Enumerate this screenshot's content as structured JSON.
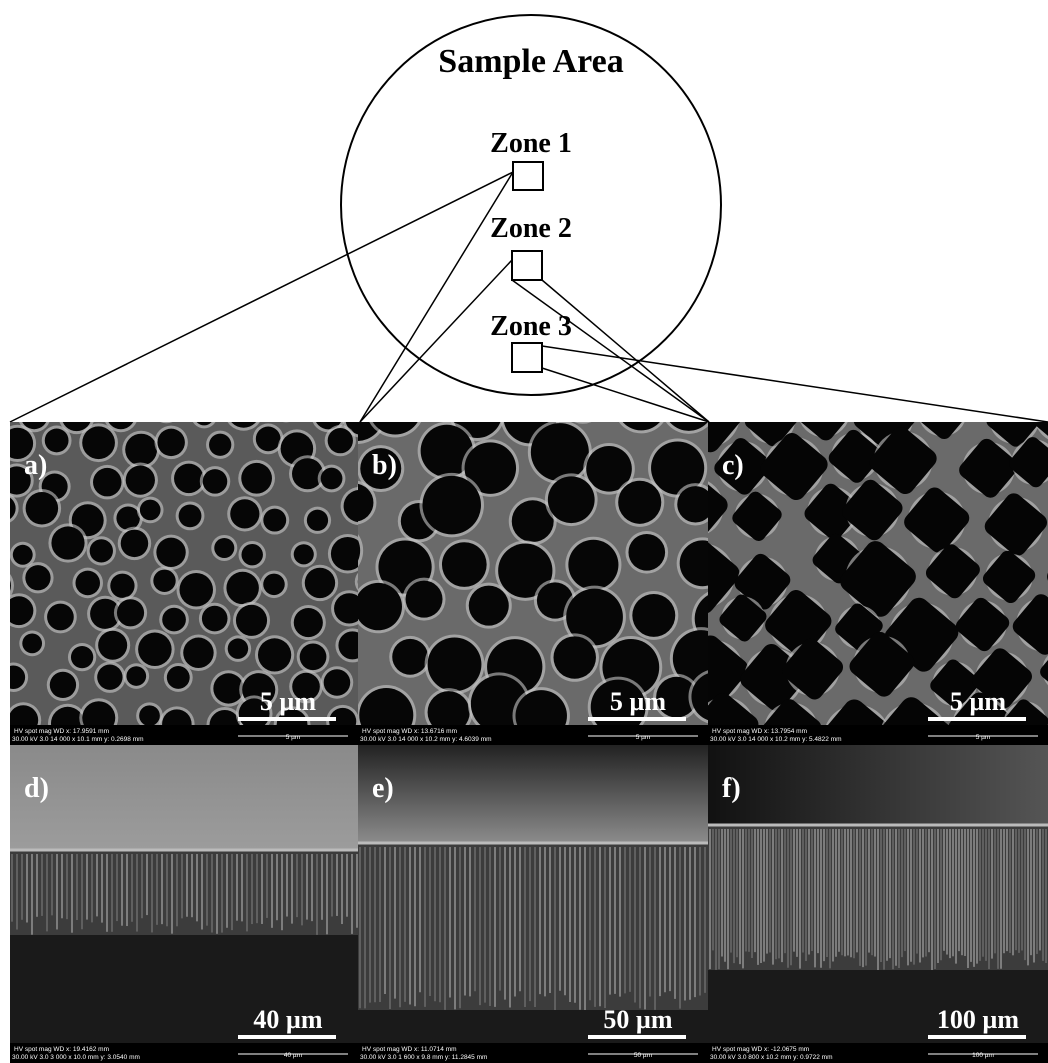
{
  "figure": {
    "title": "Sample Area",
    "zones": [
      "Zone 1",
      "Zone 2",
      "Zone 3"
    ],
    "panels": [
      {
        "label": "a)",
        "scale_bar": "5 µm",
        "info_line_1": "HV     spot    mag    WD    x: 17.9591 mm",
        "info_line_2": "30.00 kV  3.0  14 000 x  10.1 mm  y: 0.2698 mm",
        "bar_text": "5 µm"
      },
      {
        "label": "b)",
        "scale_bar": "5 µm",
        "info_line_1": "HV     spot    mag    WD    x: 13.6716 mm",
        "info_line_2": "30.00 kV  3.0  14 000 x  10.2 mm  y: 4.6039 mm",
        "bar_text": "5 µm"
      },
      {
        "label": "c)",
        "scale_bar": "5 µm",
        "info_line_1": "HV     spot    mag    WD    x: 13.7954 mm",
        "info_line_2": "30.00 kV  3.0  14 000 x  10.2 mm  y: 5.4822 mm",
        "bar_text": "5 µm"
      },
      {
        "label": "d)",
        "scale_bar": "40 µm",
        "info_line_1": "HV     spot    mag    WD    x: 19.4162 mm",
        "info_line_2": "30.00 kV  3.0  3 000 x  10.0 mm  y: 3.0540 mm",
        "bar_text": "40 µm"
      },
      {
        "label": "e)",
        "scale_bar": "50 µm",
        "info_line_1": "HV     spot    mag    WD    x: 11.0714 mm",
        "info_line_2": "30.00 kV  3.0  1 600 x  9.8 mm  y: 11.2845 mm",
        "bar_text": "50 µm"
      },
      {
        "label": "f)",
        "scale_bar": "100 µm",
        "info_line_1": "HV     spot    mag    WD    x: -12.0675 mm",
        "info_line_2": "30.00 kV  3.0  800 x  10.2 mm  y: 0.9722 mm",
        "bar_text": "100 µm"
      }
    ]
  }
}
